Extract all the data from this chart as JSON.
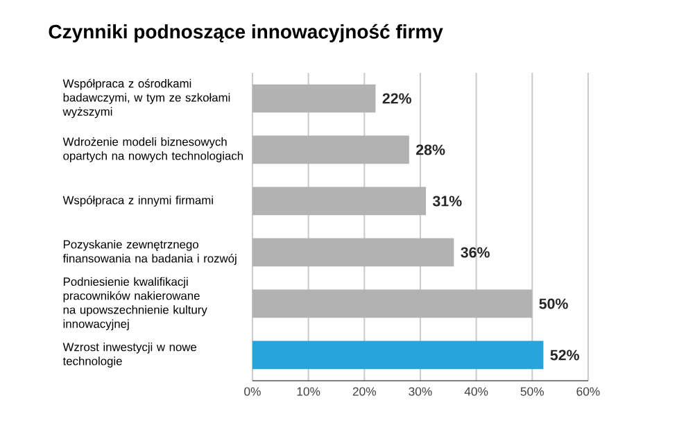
{
  "chart_data": {
    "type": "bar",
    "orientation": "horizontal",
    "title": "Czynniki podnoszące innowacyjność firmy",
    "categories": [
      "Współpraca z ośrodkami badawczymi, w tym ze szkołami wyższymi",
      "Wdrożenie modeli biznesowych opartych na nowych technologiach",
      "Współpraca z innymi firmami",
      "Pozyskanie zewnętrznego finansowania na badania i rozwój",
      "Podniesienie kwalifikacji pracowników nakierowane na upowszechnienie kultury innowacyjnej",
      "Wzrost inwestycji w nowe technologie"
    ],
    "values": [
      22,
      28,
      31,
      36,
      50,
      52
    ],
    "value_labels": [
      "22%",
      "28%",
      "31%",
      "36%",
      "50%",
      "52%"
    ],
    "colors": [
      "#b3b2b3",
      "#b3b2b3",
      "#b3b2b3",
      "#b3b2b3",
      "#b3b2b3",
      "#29a3dc"
    ],
    "xlim": [
      0,
      60
    ],
    "xticks": [
      {
        "value": 0,
        "label": "0%"
      },
      {
        "value": 10,
        "label": "10%"
      },
      {
        "value": 20,
        "label": "20%"
      },
      {
        "value": 30,
        "label": "30%"
      },
      {
        "value": 40,
        "label": "40%"
      },
      {
        "value": 50,
        "label": "50%"
      },
      {
        "value": 60,
        "label": "60%"
      }
    ],
    "grid": "x"
  }
}
